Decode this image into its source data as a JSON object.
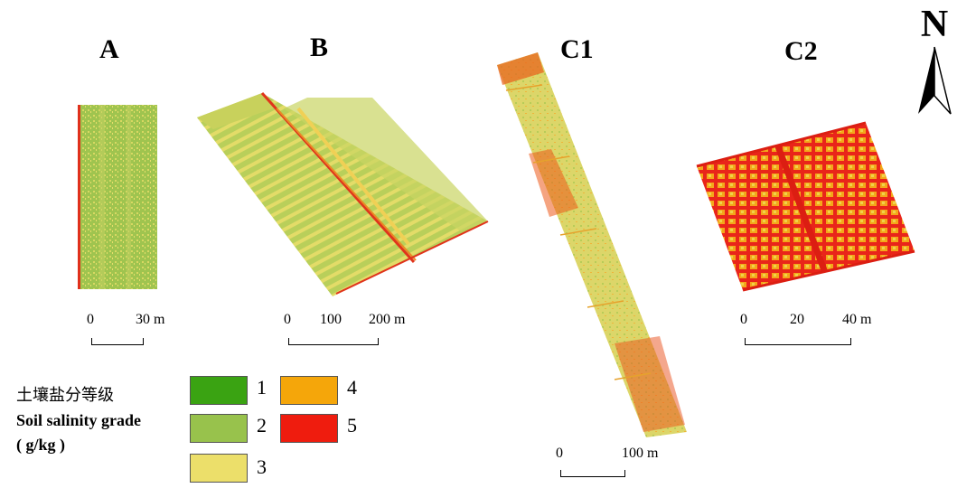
{
  "panels": {
    "A": {
      "label": "A",
      "scale_start": "0",
      "scale_end": "30 m"
    },
    "B": {
      "label": "B",
      "scale_start": "0",
      "scale_mid": "100",
      "scale_end": "200 m"
    },
    "C1": {
      "label": "C1",
      "scale_start": "0",
      "scale_end": "100 m"
    },
    "C2": {
      "label": "C2",
      "scale_start": "0",
      "scale_mid": "20",
      "scale_end": "40 m"
    }
  },
  "north_arrow": {
    "letter": "N"
  },
  "legend": {
    "title_cn": "土壤盐分等级",
    "title_en": "Soil salinity grade",
    "unit": "( g/kg )",
    "grades": [
      {
        "label": "1",
        "color": "#3aa312"
      },
      {
        "label": "2",
        "color": "#98c24c"
      },
      {
        "label": "3",
        "color": "#ecdf6a"
      },
      {
        "label": "4",
        "color": "#f5a60a"
      },
      {
        "label": "5",
        "color": "#ef1c0e"
      }
    ]
  }
}
